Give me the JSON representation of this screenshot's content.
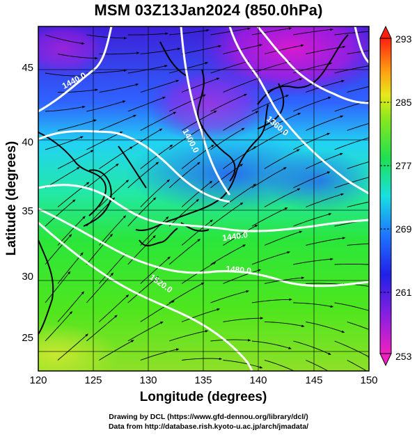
{
  "title": "MSM 03Z13Jan2024 (850.0hPa)",
  "axes": {
    "xlabel": "Longitude (degrees)",
    "ylabel": "Latitude  (degrees)",
    "xticks": [
      "120",
      "125",
      "130",
      "135",
      "140",
      "145",
      "150"
    ],
    "yticks": [
      "25",
      "30",
      "35",
      "40",
      "45"
    ]
  },
  "colorbar": {
    "ticks": [
      "293",
      "285",
      "277",
      "269",
      "261",
      "253"
    ]
  },
  "contour_labels": [
    {
      "text": "1440.0"
    },
    {
      "text": "1400.0"
    },
    {
      "text": "1360.0"
    },
    {
      "text": "1440.0"
    },
    {
      "text": "1480.0"
    },
    {
      "text": "1520.0"
    }
  ],
  "credits": {
    "line1": "Drawing by DCL (https://www.gfd-dennou.org/library/dcl/)",
    "line2": "Data from http://database.rish.kyoto-u.ac.jp/arch/jmadata/"
  },
  "chart_data": {
    "type": "heatmap",
    "xlim": [
      120,
      150
    ],
    "ylim": [
      22.5,
      47.5
    ],
    "color_range": [
      253,
      293
    ],
    "contour_values": [
      1360,
      1400,
      1440,
      1480,
      1520
    ]
  }
}
